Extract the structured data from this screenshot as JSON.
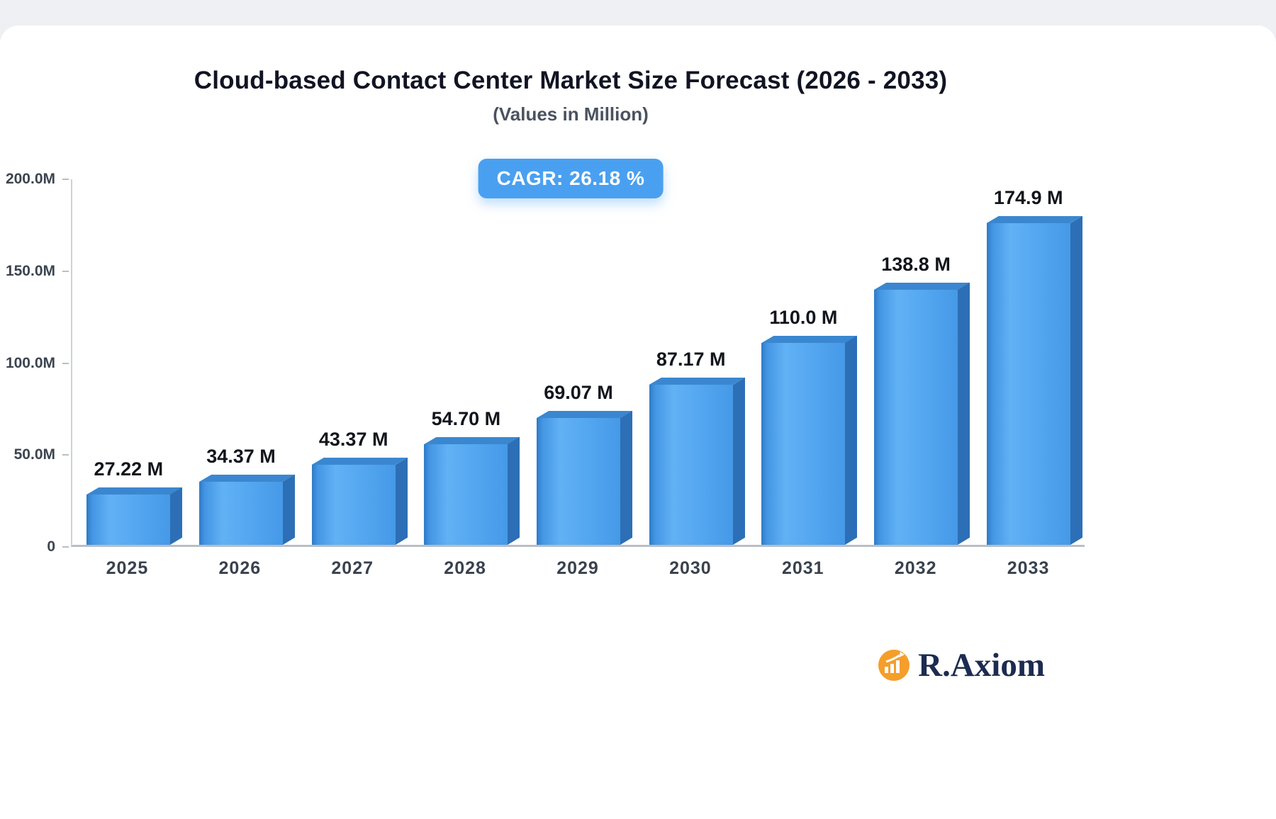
{
  "title": "Cloud-based Contact Center Market Size Forecast (2026 - 2033)",
  "subtitle": "(Values in Million)",
  "badge_label": "CAGR: 26.18 %",
  "logo_text": "R.Axiom",
  "colors": {
    "bar_front": "#4aa0ec",
    "bar_side": "#2d6fb6",
    "bar_top": "#3a87d0",
    "badge_bg": "#4aa0f0",
    "logo_orange": "#f59e2b",
    "logo_navy": "#1c2b50"
  },
  "chart_data": {
    "type": "bar",
    "title": "Cloud-based Contact Center Market Size Forecast (2026 - 2033)",
    "subtitle": "(Values in Million)",
    "annotation": "CAGR: 26.18 %",
    "categories": [
      "2025",
      "2026",
      "2027",
      "2028",
      "2029",
      "2030",
      "2031",
      "2032",
      "2033"
    ],
    "values": [
      27.22,
      34.37,
      43.37,
      54.7,
      69.07,
      87.17,
      110.0,
      138.8,
      174.9
    ],
    "value_labels": [
      "27.22 M",
      "34.37 M",
      "43.37 M",
      "54.70 M",
      "69.07 M",
      "87.17 M",
      "110.0 M",
      "138.8 M",
      "174.9 M"
    ],
    "xlabel": "",
    "ylabel": "",
    "ylim": [
      0,
      200
    ],
    "ytick_values": [
      0,
      50,
      100,
      150,
      200
    ],
    "ytick_labels": [
      "0",
      "50.0M",
      "100.0M",
      "150.0M",
      "200.0M"
    ],
    "grid": false,
    "legend": null,
    "bar_style": "3d-extruded-blue"
  }
}
